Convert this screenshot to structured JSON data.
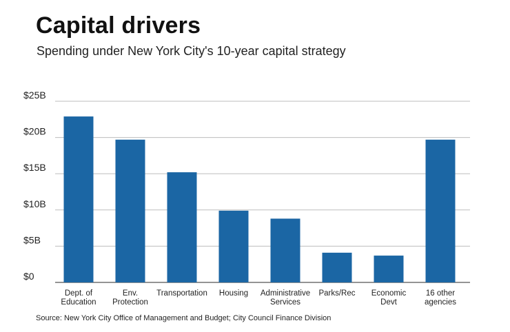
{
  "title": "Capital drivers",
  "subtitle": "Spending under New York City's 10-year capital strategy",
  "source": "Source: New York City Office of Management and Budget; City Council Finance Division",
  "colors": {
    "bar": "#1b66a4",
    "grid": "#bdbdbd",
    "axis": "#555555"
  },
  "chart_data": {
    "type": "bar",
    "categories": [
      [
        "Dept. of",
        "Education"
      ],
      [
        "Env.",
        "Protection"
      ],
      [
        "Transportation"
      ],
      [
        "Housing"
      ],
      [
        "Administrative",
        "Services"
      ],
      [
        "Parks/Rec"
      ],
      [
        "Economic",
        "Devt"
      ],
      [
        "16 other",
        "agencies"
      ]
    ],
    "values": [
      22.9,
      19.7,
      15.2,
      9.9,
      8.8,
      4.1,
      3.7,
      19.7
    ],
    "unit": "billion USD",
    "ylim": [
      0,
      25
    ],
    "yticks": [
      0,
      5,
      10,
      15,
      20,
      25
    ],
    "ytick_labels": [
      "$0",
      "$5B",
      "$10B",
      "$15B",
      "$20B",
      "$25B"
    ],
    "grid": true,
    "legend": "none"
  }
}
